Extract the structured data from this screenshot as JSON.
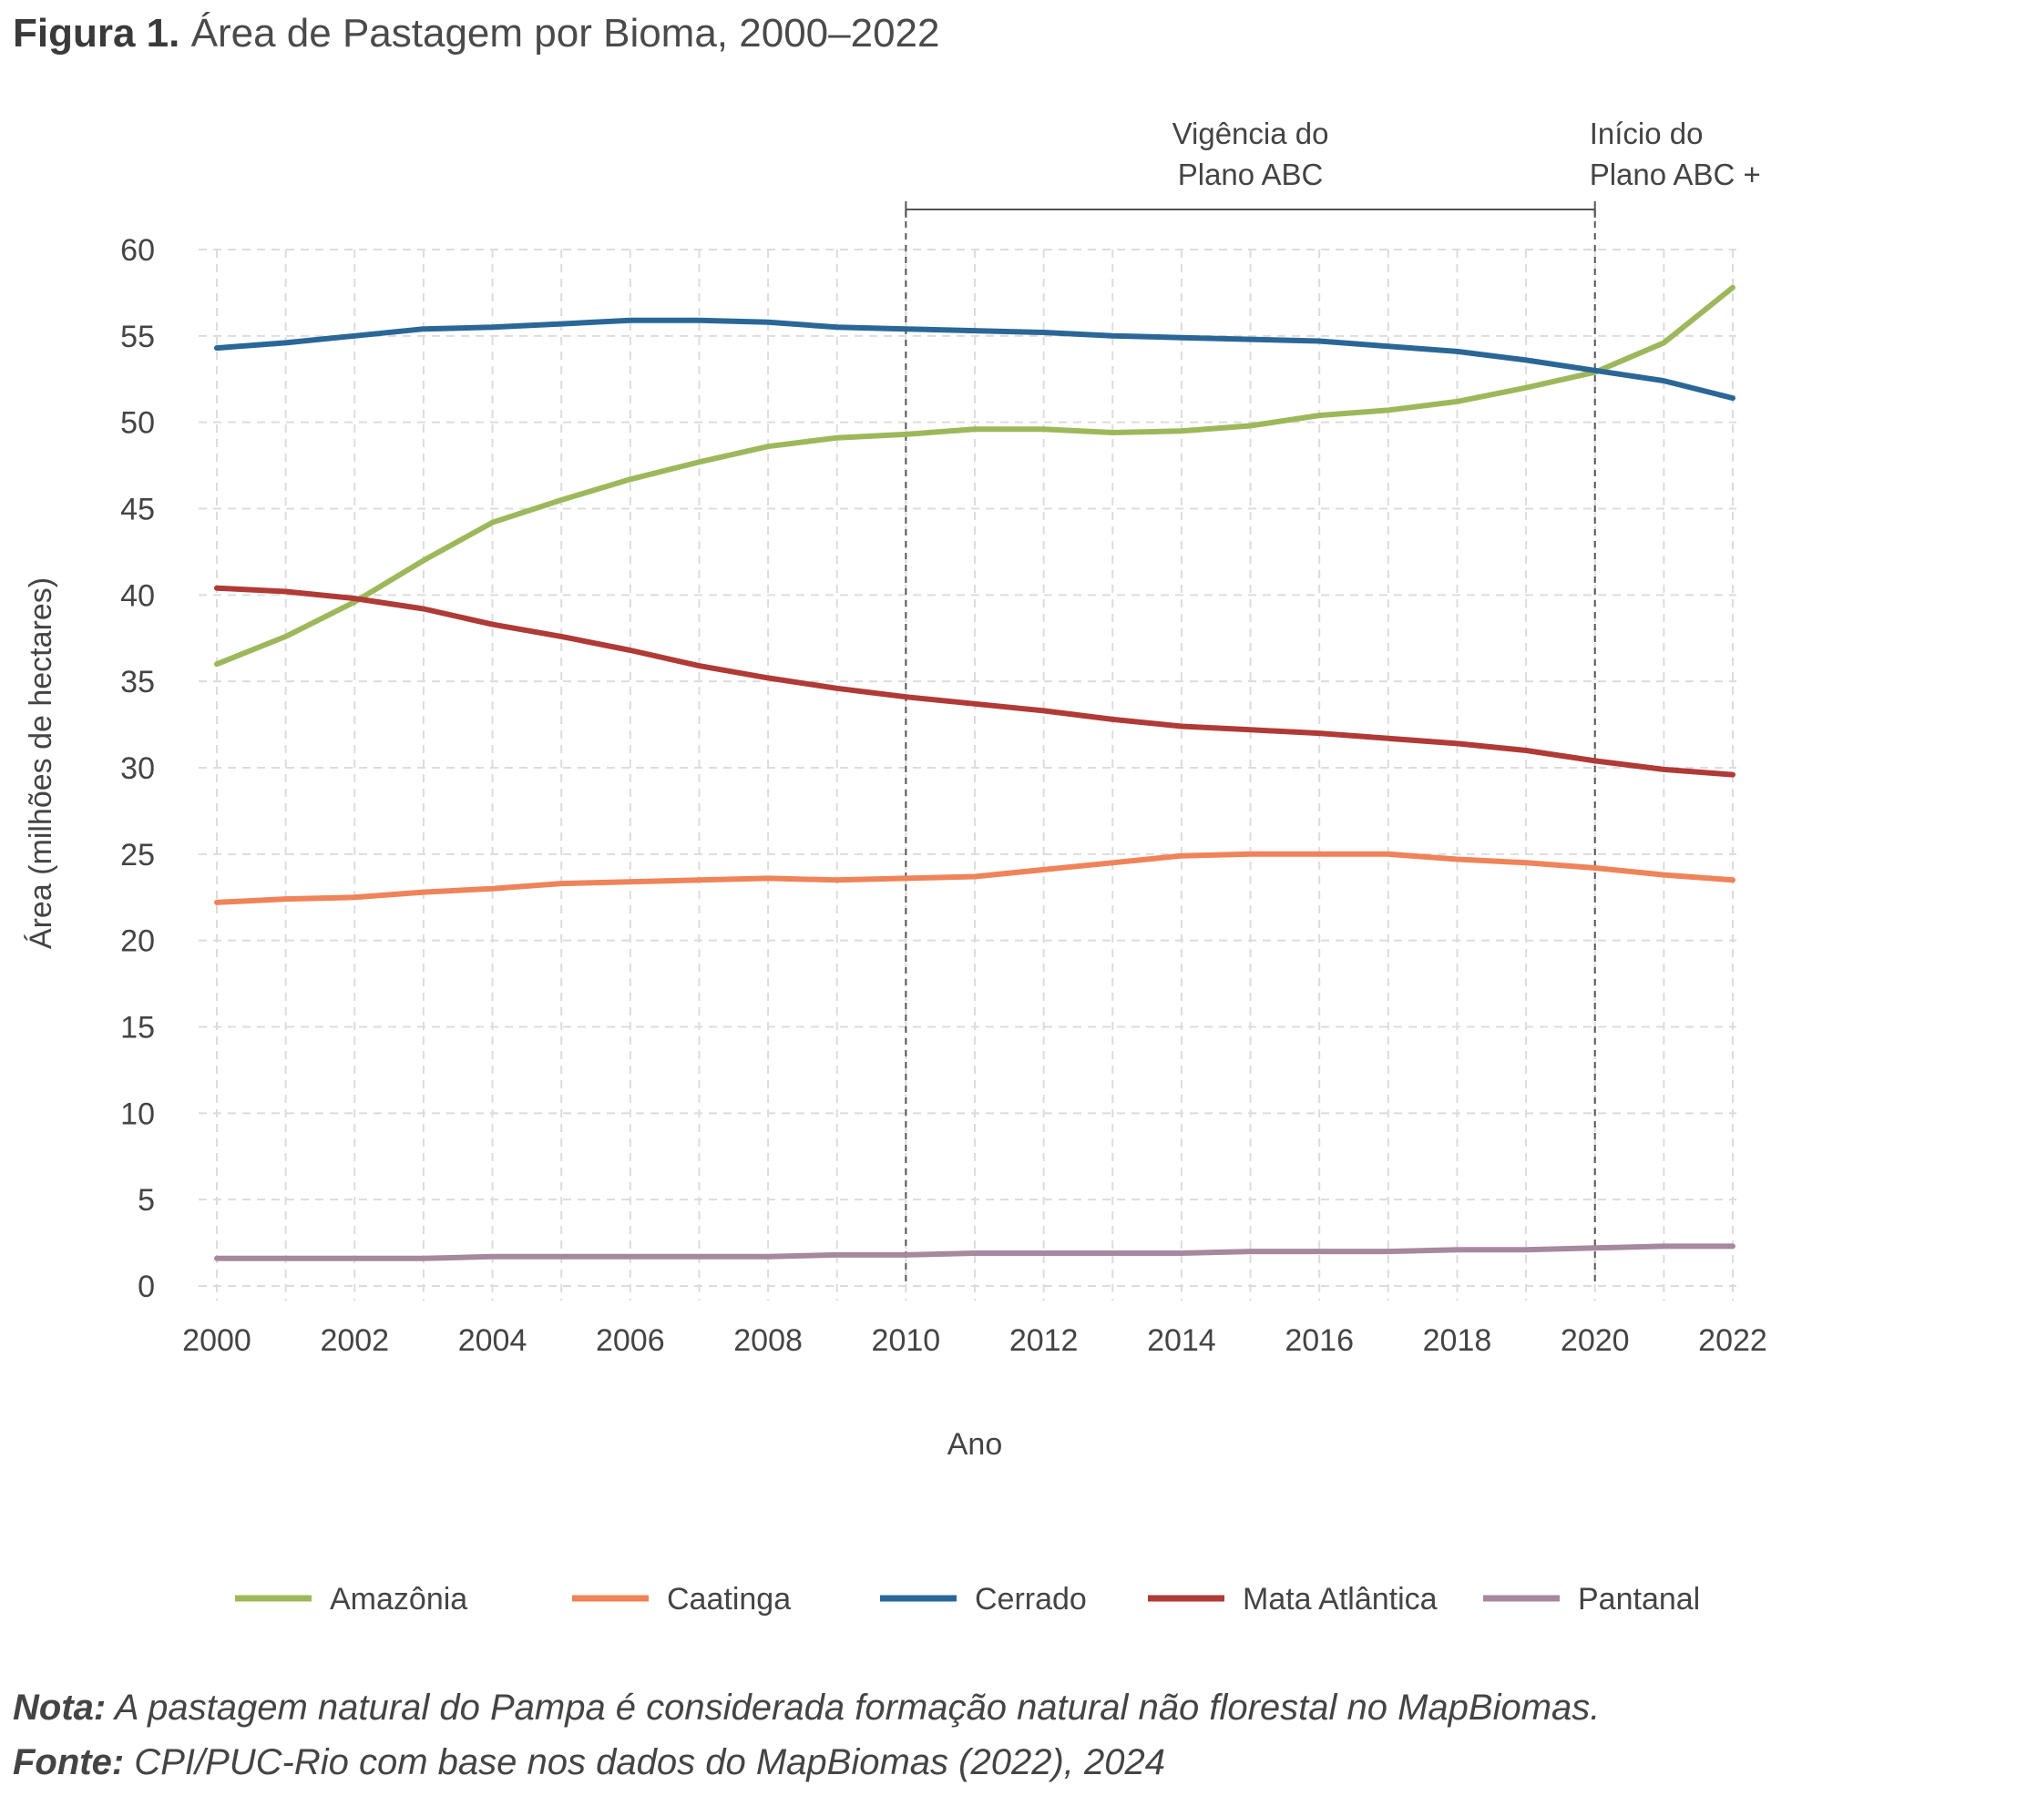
{
  "figure": {
    "label": "Figura 1.",
    "title": "Área de Pastagem por Bioma, 2000–2022"
  },
  "chart_data": {
    "type": "line",
    "xlabel": "Ano",
    "ylabel": "Área (milhões de hectares)",
    "xlim": [
      2000,
      2022
    ],
    "ylim": [
      0,
      60
    ],
    "x_ticks": [
      2000,
      2002,
      2004,
      2006,
      2008,
      2010,
      2012,
      2014,
      2016,
      2018,
      2020,
      2022
    ],
    "y_ticks": [
      0,
      5,
      10,
      15,
      20,
      25,
      30,
      35,
      40,
      45,
      50,
      55,
      60
    ],
    "grid": true,
    "legend_position": "bottom",
    "x": [
      2000,
      2001,
      2002,
      2003,
      2004,
      2005,
      2006,
      2007,
      2008,
      2009,
      2010,
      2011,
      2012,
      2013,
      2014,
      2015,
      2016,
      2017,
      2018,
      2019,
      2020,
      2021,
      2022
    ],
    "series": [
      {
        "name": "Amazônia",
        "color": "#9db85b",
        "values": [
          36.0,
          37.6,
          39.6,
          42.0,
          44.2,
          45.5,
          46.7,
          47.7,
          48.6,
          49.1,
          49.3,
          49.6,
          49.6,
          49.4,
          49.5,
          49.8,
          50.4,
          50.7,
          51.2,
          52.0,
          52.9,
          54.6,
          57.8
        ]
      },
      {
        "name": "Caatinga",
        "color": "#ef835a",
        "values": [
          22.2,
          22.4,
          22.5,
          22.8,
          23.0,
          23.3,
          23.4,
          23.5,
          23.6,
          23.5,
          23.6,
          23.7,
          24.1,
          24.5,
          24.9,
          25.0,
          25.0,
          25.0,
          24.7,
          24.5,
          24.2,
          23.8,
          23.5
        ]
      },
      {
        "name": "Cerrado",
        "color": "#2a6797",
        "values": [
          54.3,
          54.6,
          55.0,
          55.4,
          55.5,
          55.7,
          55.9,
          55.9,
          55.8,
          55.5,
          55.4,
          55.3,
          55.2,
          55.0,
          54.9,
          54.8,
          54.7,
          54.4,
          54.1,
          53.6,
          53.0,
          52.4,
          51.4
        ]
      },
      {
        "name": "Mata Atlântica",
        "color": "#b03a36",
        "values": [
          40.4,
          40.2,
          39.8,
          39.2,
          38.3,
          37.6,
          36.8,
          35.9,
          35.2,
          34.6,
          34.1,
          33.7,
          33.3,
          32.8,
          32.4,
          32.2,
          32.0,
          31.7,
          31.4,
          31.0,
          30.4,
          29.9,
          29.6
        ]
      },
      {
        "name": "Pantanal",
        "color": "#a6899d",
        "values": [
          1.6,
          1.6,
          1.6,
          1.6,
          1.7,
          1.7,
          1.7,
          1.7,
          1.7,
          1.8,
          1.8,
          1.9,
          1.9,
          1.9,
          1.9,
          2.0,
          2.0,
          2.0,
          2.1,
          2.1,
          2.2,
          2.3,
          2.3
        ]
      }
    ],
    "annotations": [
      {
        "text_lines": [
          "Vigência do",
          "Plano ABC"
        ],
        "x_start": 2010,
        "x_end": 2020,
        "bracket": true
      },
      {
        "text_lines": [
          "Início do",
          "Plano ABC +"
        ],
        "x": 2020
      }
    ],
    "reference_lines": [
      2010,
      2020
    ]
  },
  "notes": {
    "nota_label": "Nota:",
    "nota_text": " A pastagem natural do Pampa é considerada formação natural não florestal no MapBiomas.",
    "fonte_label": "Fonte:",
    "fonte_text": " CPI/PUC-Rio com base nos dados do MapBiomas (2022), 2024"
  }
}
